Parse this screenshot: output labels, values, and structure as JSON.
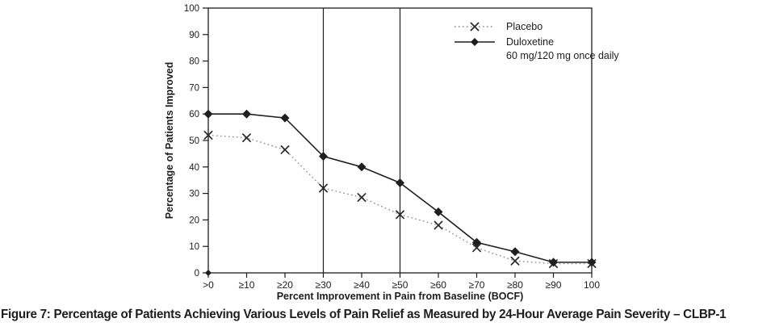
{
  "figure": {
    "caption": "Figure 7: Percentage of Patients Achieving Various Levels of Pain Relief as Measured by 24-Hour Average Pain Severity – CLBP-1"
  },
  "chart_data": {
    "type": "line",
    "title": "",
    "xlabel": "Percent Improvement in Pain from Baseline (BOCF)",
    "ylabel": "Percentage of Patients Improved",
    "ylim": [
      0,
      100
    ],
    "yticks": [
      0,
      10,
      20,
      30,
      40,
      50,
      60,
      70,
      80,
      90,
      100
    ],
    "grid": false,
    "legend_position": "top-right-inside",
    "categories": [
      ">0",
      "≥10",
      "≥20",
      "≥30",
      "≥40",
      "≥50",
      "≥60",
      "≥70",
      "≥80",
      "≥90",
      "100"
    ],
    "reference_lines_at": [
      "≥30",
      "≥50"
    ],
    "series": [
      {
        "name": "Placebo",
        "legend_lines": [
          "Placebo"
        ],
        "line_style": "dotted",
        "marker": "x",
        "line_color": "#8c8c8c",
        "marker_color": "#2a2a2a",
        "values": [
          52,
          51,
          46.5,
          32,
          28.5,
          22,
          18,
          9.5,
          4.5,
          3.5,
          3.5
        ]
      },
      {
        "name": "Duloxetine 60 mg/120 mg once daily",
        "legend_lines": [
          "Duloxetine",
          "60 mg/120 mg once daily"
        ],
        "line_style": "solid",
        "marker": "diamond",
        "line_color": "#1f1f1f",
        "marker_color": "#1f1f1f",
        "values": [
          60,
          60,
          58.5,
          44,
          40,
          34,
          23,
          11.5,
          8,
          4,
          4
        ]
      }
    ],
    "axis_color": "#1c1c1c"
  }
}
